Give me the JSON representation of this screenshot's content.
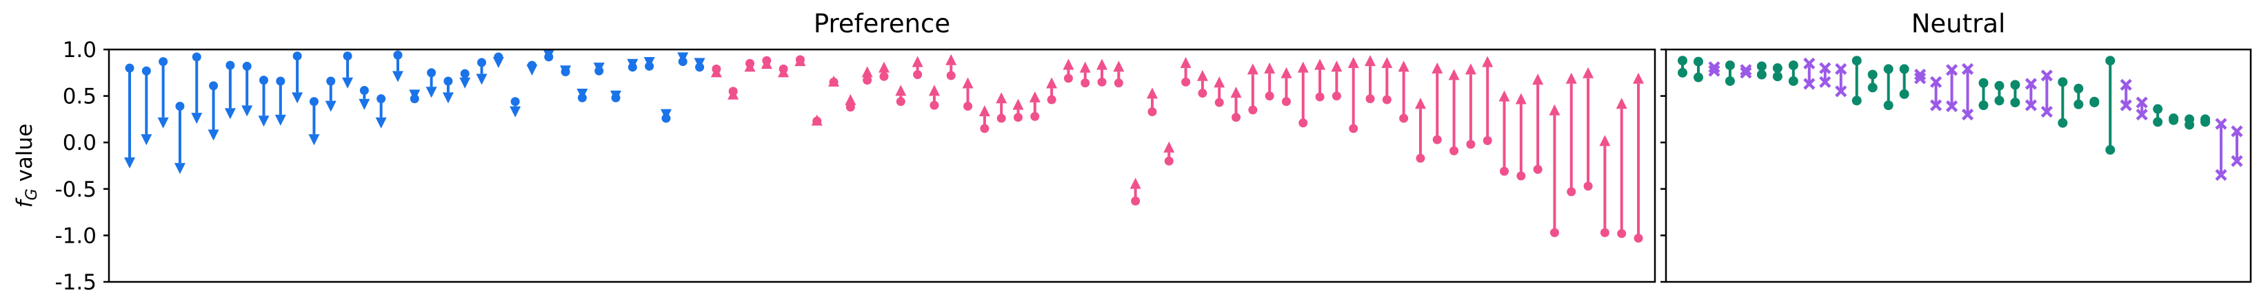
{
  "ylabel": "f_G value",
  "ylabel_base": "f",
  "ylabel_sub": "G",
  "ylabel_rest": " value",
  "colors": {
    "blue": "#1a73e8",
    "pink": "#f0508c",
    "green": "#0a8a6a",
    "purple": "#9b59e8",
    "axis": "#000000"
  },
  "chart_data": [
    {
      "type": "arrow",
      "title": "Preference",
      "ylim": [
        -1.5,
        1.0
      ],
      "yticks": [
        1.0,
        0.5,
        0.0,
        -0.5,
        -1.0,
        -1.5
      ],
      "ytick_labels": [
        "1.0",
        "0.5",
        "0.0",
        "-0.5",
        "-1.0",
        "-1.5"
      ],
      "grid": false,
      "series": [
        {
          "color": "blue",
          "direction": "down",
          "points": [
            {
              "start": 0.8,
              "end": -0.28
            },
            {
              "start": 0.77,
              "end": -0.03
            },
            {
              "start": 0.87,
              "end": 0.15
            },
            {
              "start": 0.39,
              "end": -0.34
            },
            {
              "start": 0.92,
              "end": 0.2
            },
            {
              "start": 0.61,
              "end": 0.02
            },
            {
              "start": 0.83,
              "end": 0.25
            },
            {
              "start": 0.82,
              "end": 0.28
            },
            {
              "start": 0.67,
              "end": 0.17
            },
            {
              "start": 0.66,
              "end": 0.18
            },
            {
              "start": 0.93,
              "end": 0.42
            },
            {
              "start": 0.44,
              "end": -0.03
            },
            {
              "start": 0.66,
              "end": 0.33
            },
            {
              "start": 0.93,
              "end": 0.58
            },
            {
              "start": 0.56,
              "end": 0.35
            },
            {
              "start": 0.47,
              "end": 0.15
            },
            {
              "start": 0.94,
              "end": 0.65
            },
            {
              "start": 0.47,
              "end": 0.45
            },
            {
              "start": 0.75,
              "end": 0.48
            },
            {
              "start": 0.66,
              "end": 0.42
            },
            {
              "start": 0.74,
              "end": 0.58
            },
            {
              "start": 0.86,
              "end": 0.62
            },
            {
              "start": 0.92,
              "end": 0.8
            },
            {
              "start": 0.44,
              "end": 0.27
            },
            {
              "start": 0.83,
              "end": 0.72
            },
            {
              "start": 0.92,
              "end": 0.88
            },
            {
              "start": 0.76,
              "end": 0.71
            },
            {
              "start": 0.48,
              "end": 0.46
            },
            {
              "start": 0.77,
              "end": 0.74
            },
            {
              "start": 0.48,
              "end": 0.44
            },
            {
              "start": 0.81,
              "end": 0.78
            },
            {
              "start": 0.82,
              "end": 0.8
            },
            {
              "start": 0.26,
              "end": 0.24
            },
            {
              "start": 0.87,
              "end": 0.85
            },
            {
              "start": 0.81,
              "end": 0.79
            }
          ]
        },
        {
          "color": "pink",
          "direction": "up",
          "points": [
            {
              "start": 0.79,
              "end": 0.82
            },
            {
              "start": 0.55,
              "end": 0.58
            },
            {
              "start": 0.85,
              "end": 0.88
            },
            {
              "start": 0.88,
              "end": 0.91
            },
            {
              "start": 0.79,
              "end": 0.82
            },
            {
              "start": 0.89,
              "end": 0.94
            },
            {
              "start": 0.23,
              "end": 0.3
            },
            {
              "start": 0.65,
              "end": 0.72
            },
            {
              "start": 0.38,
              "end": 0.52
            },
            {
              "start": 0.67,
              "end": 0.82
            },
            {
              "start": 0.71,
              "end": 0.87
            },
            {
              "start": 0.44,
              "end": 0.62
            },
            {
              "start": 0.73,
              "end": 0.93
            },
            {
              "start": 0.4,
              "end": 0.62
            },
            {
              "start": 0.72,
              "end": 0.95
            },
            {
              "start": 0.39,
              "end": 0.7
            },
            {
              "start": 0.15,
              "end": 0.4
            },
            {
              "start": 0.26,
              "end": 0.54
            },
            {
              "start": 0.27,
              "end": 0.47
            },
            {
              "start": 0.28,
              "end": 0.55
            },
            {
              "start": 0.46,
              "end": 0.7
            },
            {
              "start": 0.69,
              "end": 0.9
            },
            {
              "start": 0.64,
              "end": 0.87
            },
            {
              "start": 0.65,
              "end": 0.9
            },
            {
              "start": 0.64,
              "end": 0.88
            },
            {
              "start": -0.63,
              "end": -0.38
            },
            {
              "start": 0.33,
              "end": 0.59
            },
            {
              "start": -0.2,
              "end": 0.01
            },
            {
              "start": 0.65,
              "end": 0.92
            },
            {
              "start": 0.53,
              "end": 0.78
            },
            {
              "start": 0.43,
              "end": 0.71
            },
            {
              "start": 0.27,
              "end": 0.6
            },
            {
              "start": 0.35,
              "end": 0.85
            },
            {
              "start": 0.5,
              "end": 0.86
            },
            {
              "start": 0.44,
              "end": 0.81
            },
            {
              "start": 0.21,
              "end": 0.87
            },
            {
              "start": 0.49,
              "end": 0.9
            },
            {
              "start": 0.5,
              "end": 0.88
            },
            {
              "start": 0.15,
              "end": 0.92
            },
            {
              "start": 0.47,
              "end": 0.94
            },
            {
              "start": 0.46,
              "end": 0.92
            },
            {
              "start": 0.26,
              "end": 0.88
            },
            {
              "start": -0.17,
              "end": 0.48
            },
            {
              "start": 0.03,
              "end": 0.86
            },
            {
              "start": -0.09,
              "end": 0.79
            },
            {
              "start": -0.02,
              "end": 0.85
            },
            {
              "start": 0.02,
              "end": 0.93
            },
            {
              "start": -0.31,
              "end": 0.56
            },
            {
              "start": -0.36,
              "end": 0.53
            },
            {
              "start": -0.29,
              "end": 0.74
            },
            {
              "start": -0.97,
              "end": 0.41
            },
            {
              "start": -0.53,
              "end": 0.75
            },
            {
              "start": -0.47,
              "end": 0.81
            },
            {
              "start": -0.97,
              "end": 0.08
            },
            {
              "start": -0.98,
              "end": 0.48
            },
            {
              "start": -1.03,
              "end": 0.75
            }
          ]
        }
      ]
    },
    {
      "type": "range",
      "title": "Neutral",
      "ylim": [
        -1.5,
        1.0
      ],
      "grid": false,
      "series": [
        {
          "color": "green",
          "marker": "circle",
          "points": [
            {
              "x": 0,
              "low": 0.75,
              "high": 0.88
            },
            {
              "x": 1,
              "low": 0.7,
              "high": 0.87
            },
            {
              "x": 3,
              "low": 0.66,
              "high": 0.83
            },
            {
              "x": 5,
              "low": 0.73,
              "high": 0.82
            },
            {
              "x": 6,
              "low": 0.71,
              "high": 0.8
            },
            {
              "x": 7,
              "low": 0.66,
              "high": 0.83
            },
            {
              "x": 11,
              "low": 0.45,
              "high": 0.88
            },
            {
              "x": 12,
              "low": 0.59,
              "high": 0.73
            },
            {
              "x": 13,
              "low": 0.4,
              "high": 0.79
            },
            {
              "x": 14,
              "low": 0.52,
              "high": 0.79
            },
            {
              "x": 19,
              "low": 0.4,
              "high": 0.64
            },
            {
              "x": 20,
              "low": 0.45,
              "high": 0.61
            },
            {
              "x": 21,
              "low": 0.43,
              "high": 0.62
            },
            {
              "x": 24,
              "low": 0.21,
              "high": 0.65
            },
            {
              "x": 25,
              "low": 0.41,
              "high": 0.58
            },
            {
              "x": 26,
              "low": 0.43,
              "high": 0.44
            },
            {
              "x": 27,
              "low": -0.08,
              "high": 0.88
            },
            {
              "x": 30,
              "low": 0.22,
              "high": 0.36
            },
            {
              "x": 31,
              "low": 0.24,
              "high": 0.26
            },
            {
              "x": 32,
              "low": 0.19,
              "high": 0.25
            },
            {
              "x": 33,
              "low": 0.22,
              "high": 0.25
            }
          ]
        },
        {
          "color": "purple",
          "marker": "x",
          "points": [
            {
              "x": 2,
              "low": 0.77,
              "high": 0.81
            },
            {
              "x": 4,
              "low": 0.75,
              "high": 0.78
            },
            {
              "x": 8,
              "low": 0.63,
              "high": 0.85
            },
            {
              "x": 9,
              "low": 0.65,
              "high": 0.8
            },
            {
              "x": 10,
              "low": 0.55,
              "high": 0.79
            },
            {
              "x": 15,
              "low": 0.69,
              "high": 0.73
            },
            {
              "x": 16,
              "low": 0.4,
              "high": 0.65
            },
            {
              "x": 17,
              "low": 0.39,
              "high": 0.78
            },
            {
              "x": 18,
              "low": 0.3,
              "high": 0.79
            },
            {
              "x": 22,
              "low": 0.4,
              "high": 0.63
            },
            {
              "x": 23,
              "low": 0.33,
              "high": 0.72
            },
            {
              "x": 28,
              "low": 0.4,
              "high": 0.62
            },
            {
              "x": 29,
              "low": 0.3,
              "high": 0.43
            },
            {
              "x": 34,
              "low": -0.35,
              "high": 0.2
            },
            {
              "x": 35,
              "low": -0.2,
              "high": 0.12
            }
          ]
        }
      ]
    }
  ]
}
